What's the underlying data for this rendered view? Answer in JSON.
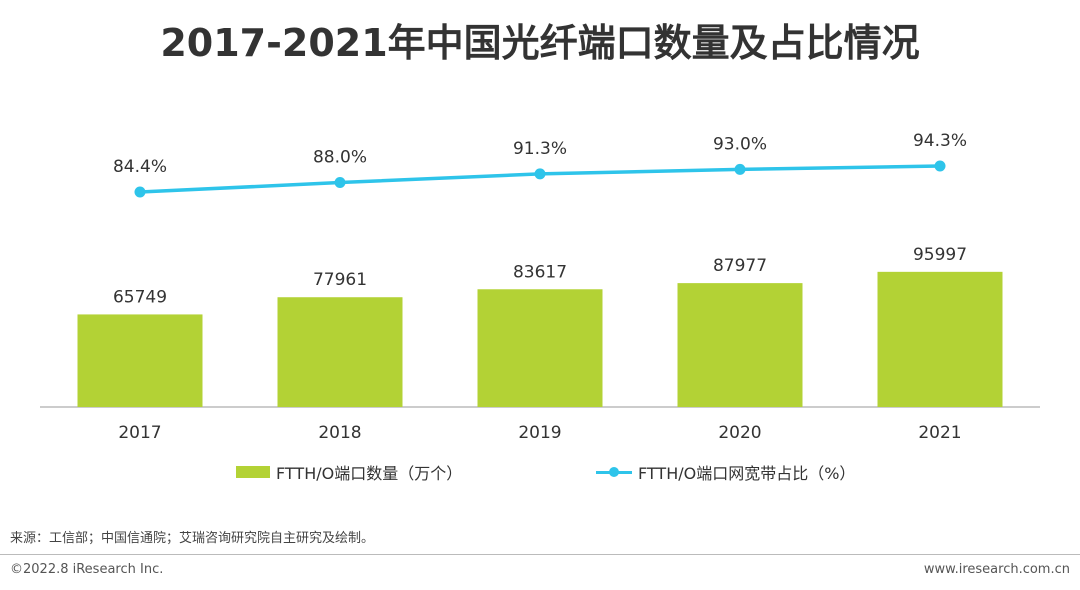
{
  "title": "2017-2021年中国光纤端口数量及占比情况",
  "chart_data": {
    "type": "bar+line",
    "categories": [
      "2017",
      "2018",
      "2019",
      "2020",
      "2021"
    ],
    "series": [
      {
        "name": "FTTH/O端口数量（万个）",
        "type": "bar",
        "values": [
          65749,
          77961,
          83617,
          87977,
          95997
        ],
        "value_labels": [
          "65749",
          "77961",
          "83617",
          "87977",
          "95997"
        ]
      },
      {
        "name": "FTTH/O端口网宽带占比（%）",
        "type": "line",
        "values": [
          84.4,
          88.0,
          91.3,
          93.0,
          94.3
        ],
        "value_labels": [
          "84.4%",
          "88.0%",
          "91.3%",
          "93.0%",
          "94.3%"
        ]
      }
    ],
    "legend_position": "bottom",
    "grid": false
  },
  "colors": {
    "bar": "#b3d235",
    "line": "#2ec4ea",
    "axis": "#999999"
  },
  "footer": {
    "source": "来源：工信部；中国信通院；艾瑞咨询研究院自主研究及绘制。",
    "copyright": "©2022.8 iResearch Inc.",
    "website": "www.iresearch.com.cn"
  }
}
